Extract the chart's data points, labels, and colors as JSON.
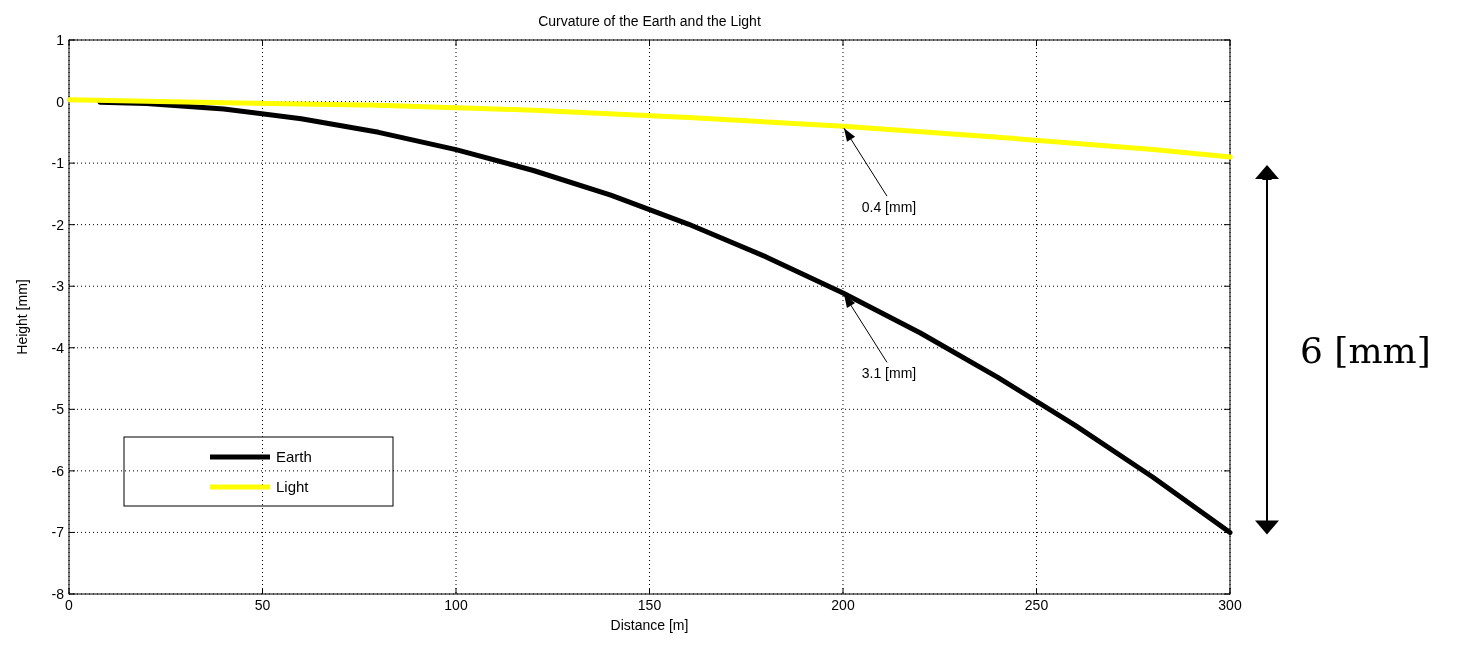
{
  "chart_data": {
    "type": "line",
    "title": "Curvature of the Earth and the Light",
    "xlabel": "Distance [m]",
    "ylabel": "Height [mm]",
    "series": [
      {
        "name": "Earth",
        "color": "#000000",
        "x": [
          8,
          20,
          40,
          60,
          80,
          100,
          120,
          140,
          160,
          180,
          200,
          220,
          240,
          260,
          280,
          300
        ],
        "values": [
          -0.01,
          -0.03,
          -0.12,
          -0.28,
          -0.5,
          -0.78,
          -1.12,
          -1.52,
          -1.99,
          -2.52,
          -3.11,
          -3.76,
          -4.48,
          -5.26,
          -6.1,
          -7.0
        ]
      },
      {
        "name": "Light",
        "color": "#ffff00",
        "x": [
          0,
          40,
          80,
          120,
          160,
          200,
          240,
          280,
          300
        ],
        "values": [
          0.03,
          -0.02,
          -0.06,
          -0.14,
          -0.26,
          -0.4,
          -0.58,
          -0.78,
          -0.9
        ]
      }
    ],
    "xlim": [
      0,
      300
    ],
    "xticks": [
      0,
      50,
      100,
      150,
      200,
      250,
      300
    ],
    "ylim": [
      -8,
      1
    ],
    "yticks": [
      -8,
      -7,
      -6,
      -5,
      -4,
      -3,
      -2,
      -1,
      0,
      1
    ],
    "grid": true,
    "legend": "bottom left",
    "line_style": "solid",
    "marker": "none",
    "annotations": [
      {
        "text": "0.4 [mm]",
        "x": 200,
        "y": -0.4
      },
      {
        "text": "3.1 [mm]",
        "x": 200,
        "y": -3.1
      },
      "6 [mm]"
    ]
  }
}
